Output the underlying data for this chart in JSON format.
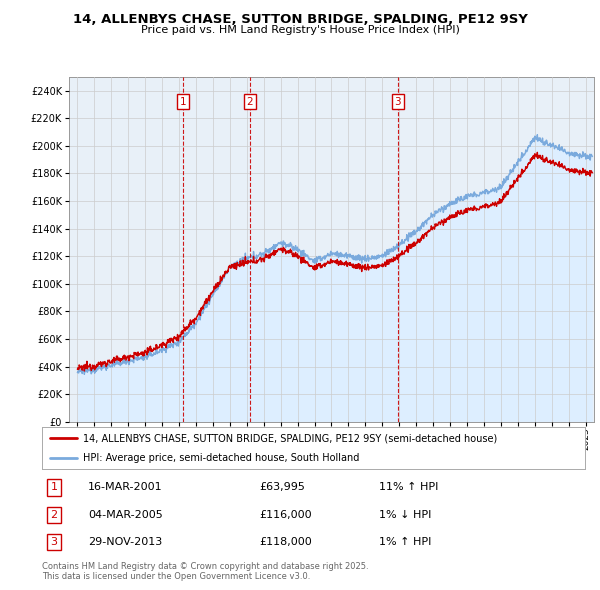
{
  "title": "14, ALLENBYS CHASE, SUTTON BRIDGE, SPALDING, PE12 9SY",
  "subtitle": "Price paid vs. HM Land Registry's House Price Index (HPI)",
  "xlim": [
    1994.5,
    2025.5
  ],
  "ylim": [
    0,
    250000
  ],
  "yticks": [
    0,
    20000,
    40000,
    60000,
    80000,
    100000,
    120000,
    140000,
    160000,
    180000,
    200000,
    220000,
    240000
  ],
  "xticks": [
    1995,
    1996,
    1997,
    1998,
    1999,
    2000,
    2001,
    2002,
    2003,
    2004,
    2005,
    2006,
    2007,
    2008,
    2009,
    2010,
    2011,
    2012,
    2013,
    2014,
    2015,
    2016,
    2017,
    2018,
    2019,
    2020,
    2021,
    2022,
    2023,
    2024,
    2025
  ],
  "transactions": [
    {
      "num": 1,
      "date": "16-MAR-2001",
      "year": 2001.21,
      "price": 63995,
      "price_str": "£63,995",
      "info": "11% ↑ HPI"
    },
    {
      "num": 2,
      "date": "04-MAR-2005",
      "year": 2005.17,
      "price": 116000,
      "price_str": "£116,000",
      "info": "1% ↓ HPI"
    },
    {
      "num": 3,
      "date": "29-NOV-2013",
      "year": 2013.91,
      "price": 118000,
      "price_str": "£118,000",
      "info": "1% ↑ HPI"
    }
  ],
  "legend_line1": "14, ALLENBYS CHASE, SUTTON BRIDGE, SPALDING, PE12 9SY (semi-detached house)",
  "legend_line2": "HPI: Average price, semi-detached house, South Holland",
  "footer": "Contains HM Land Registry data © Crown copyright and database right 2025.\nThis data is licensed under the Open Government Licence v3.0.",
  "line_color_red": "#cc0000",
  "line_color_blue": "#7aaadd",
  "fill_color_blue": "#ddeeff",
  "bg_color": "#ffffff",
  "grid_color": "#cccccc",
  "vline_color": "#cc0000",
  "box_color": "#cc0000",
  "plot_bg": "#e8f0f8"
}
